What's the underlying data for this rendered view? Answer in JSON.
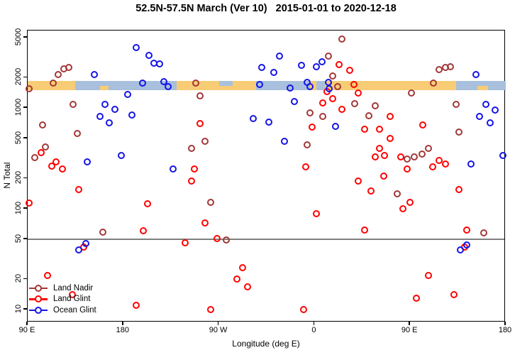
{
  "chart_data": {
    "type": "scatter",
    "title": "52.5N-57.5N March (Ver 10)   2015-01-01 to 2020-12-18",
    "xlabel": "Longitude (deg E)",
    "ylabel": "N Total",
    "x_axis": {
      "note": "longitude axis unwrapped eastward, 90E to 180 (=540)",
      "domain": [
        90,
        540
      ],
      "ticks": [
        {
          "pos": 90,
          "label": "90 E"
        },
        {
          "pos": 180,
          "label": "180"
        },
        {
          "pos": 270,
          "label": "90 W"
        },
        {
          "pos": 360,
          "label": "0"
        },
        {
          "pos": 450,
          "label": "90 E"
        },
        {
          "pos": 540,
          "label": "180"
        }
      ]
    },
    "y_axis": {
      "scale": "log10",
      "domain": [
        7.5,
        5860
      ],
      "ticks": [
        10,
        20,
        50,
        100,
        200,
        500,
        1000,
        2000,
        5000
      ]
    },
    "reference_line_n": 50,
    "reference_line_color": "#7f7f7f",
    "coast_band": {
      "n_range": [
        1500,
        1850
      ],
      "land_color": "#F7CC75",
      "ocean_color": "#A8C0DD",
      "segments": [
        {
          "from": 90,
          "to": 135,
          "type": "land"
        },
        {
          "from": 135,
          "to": 158,
          "type": "ocean"
        },
        {
          "from": 158,
          "to": 166,
          "type": "mixed"
        },
        {
          "from": 166,
          "to": 230,
          "type": "ocean"
        },
        {
          "from": 230,
          "to": 270,
          "type": "land"
        },
        {
          "from": 270,
          "to": 283,
          "type": "mixed"
        },
        {
          "from": 283,
          "to": 305,
          "type": "land"
        },
        {
          "from": 305,
          "to": 356,
          "type": "ocean"
        },
        {
          "from": 356,
          "to": 362,
          "type": "land"
        },
        {
          "from": 362,
          "to": 370,
          "type": "ocean"
        },
        {
          "from": 370,
          "to": 493,
          "type": "land"
        },
        {
          "from": 493,
          "to": 513,
          "type": "ocean"
        },
        {
          "from": 513,
          "to": 523,
          "type": "mixed"
        },
        {
          "from": 523,
          "to": 540,
          "type": "ocean"
        }
      ]
    },
    "series": [
      {
        "name": "Land Nadir",
        "color": "#A23737",
        "points": [
          [
            119,
            2140
          ],
          [
            124,
            2440
          ],
          [
            129,
            2520
          ],
          [
            114,
            1760
          ],
          [
            91,
            1550
          ],
          [
            133,
            1080
          ],
          [
            104,
            680
          ],
          [
            137,
            560
          ],
          [
            107,
            410
          ],
          [
            97,
            320
          ],
          [
            248,
            1760
          ],
          [
            252,
            1320
          ],
          [
            257,
            470
          ],
          [
            244,
            400
          ],
          [
            262,
            116
          ],
          [
            277,
            49
          ],
          [
            161,
            59
          ],
          [
            386,
            4820
          ],
          [
            373,
            3270
          ],
          [
            377,
            2080
          ],
          [
            382,
            1630
          ],
          [
            398,
            1100
          ],
          [
            356,
            890
          ],
          [
            417,
            1050
          ],
          [
            411,
            840
          ],
          [
            368,
            820
          ],
          [
            353,
            430
          ],
          [
            438,
            140
          ],
          [
            477,
            2400
          ],
          [
            483,
            2520
          ],
          [
            488,
            2560
          ],
          [
            472,
            1760
          ],
          [
            451,
            1410
          ],
          [
            493,
            1080
          ],
          [
            496,
            580
          ],
          [
            467,
            400
          ],
          [
            447,
            310
          ],
          [
            454,
            330
          ],
          [
            461,
            350
          ],
          [
            519,
            58
          ]
        ]
      },
      {
        "name": "Land Glint",
        "color": "#FF0000",
        "points": [
          [
            103,
            360
          ],
          [
            117,
            290
          ],
          [
            113,
            265
          ],
          [
            123,
            250
          ],
          [
            138,
            155
          ],
          [
            91,
            115
          ],
          [
            132,
            14
          ],
          [
            109,
            22
          ],
          [
            143,
            42
          ],
          [
            192,
            11
          ],
          [
            199,
            61
          ],
          [
            203,
            112
          ],
          [
            252,
            700
          ],
          [
            247,
            250
          ],
          [
            244,
            190
          ],
          [
            238,
            46
          ],
          [
            257,
            72
          ],
          [
            268,
            51
          ],
          [
            262,
            10
          ],
          [
            287,
            20
          ],
          [
            292,
            26
          ],
          [
            297,
            17
          ],
          [
            383,
            2690
          ],
          [
            393,
            2360
          ],
          [
            397,
            1710
          ],
          [
            401,
            1410
          ],
          [
            372,
            1450
          ],
          [
            377,
            1240
          ],
          [
            368,
            1120
          ],
          [
            386,
            970
          ],
          [
            358,
            650
          ],
          [
            407,
            620
          ],
          [
            421,
            620
          ],
          [
            421,
            400
          ],
          [
            417,
            330
          ],
          [
            352,
            260
          ],
          [
            362,
            89
          ],
          [
            350,
            10
          ],
          [
            401,
            190
          ],
          [
            413,
            150
          ],
          [
            407,
            62
          ],
          [
            431,
            820
          ],
          [
            462,
            680
          ],
          [
            431,
            500
          ],
          [
            426,
            340
          ],
          [
            441,
            330
          ],
          [
            477,
            300
          ],
          [
            483,
            280
          ],
          [
            471,
            260
          ],
          [
            447,
            250
          ],
          [
            425,
            210
          ],
          [
            496,
            155
          ],
          [
            450,
            116
          ],
          [
            443,
            100
          ],
          [
            501,
            42
          ],
          [
            467,
            22
          ],
          [
            456,
            13
          ],
          [
            491,
            14
          ],
          [
            503,
            62
          ]
        ]
      },
      {
        "name": "Ocean Glint",
        "color": "#1414E8",
        "points": [
          [
            192,
            4000
          ],
          [
            204,
            3300
          ],
          [
            153,
            2140
          ],
          [
            198,
            1780
          ],
          [
            184,
            1360
          ],
          [
            163,
            1080
          ],
          [
            172,
            970
          ],
          [
            158,
            820
          ],
          [
            188,
            850
          ],
          [
            167,
            710
          ],
          [
            146,
            290
          ],
          [
            178,
            340
          ],
          [
            209,
            2780
          ],
          [
            214,
            2740
          ],
          [
            218,
            1820
          ],
          [
            222,
            1630
          ],
          [
            308,
            1710
          ],
          [
            302,
            780
          ],
          [
            227,
            250
          ],
          [
            327,
            3270
          ],
          [
            367,
            2870
          ],
          [
            348,
            2650
          ],
          [
            362,
            2560
          ],
          [
            310,
            2520
          ],
          [
            322,
            2250
          ],
          [
            353,
            1800
          ],
          [
            373,
            1800
          ],
          [
            337,
            1570
          ],
          [
            374,
            1550
          ],
          [
            356,
            1630
          ],
          [
            341,
            1160
          ],
          [
            317,
            730
          ],
          [
            380,
            660
          ],
          [
            332,
            470
          ],
          [
            512,
            2140
          ],
          [
            521,
            1080
          ],
          [
            530,
            950
          ],
          [
            515,
            820
          ],
          [
            525,
            710
          ],
          [
            507,
            280
          ],
          [
            537,
            340
          ],
          [
            145,
            45
          ],
          [
            138,
            39
          ],
          [
            503,
            44
          ],
          [
            497,
            39
          ]
        ]
      }
    ],
    "legend_position": "bottom-left",
    "grid": "off"
  },
  "layout_colors": {
    "background": "#ffffff",
    "axis": "#000000"
  }
}
